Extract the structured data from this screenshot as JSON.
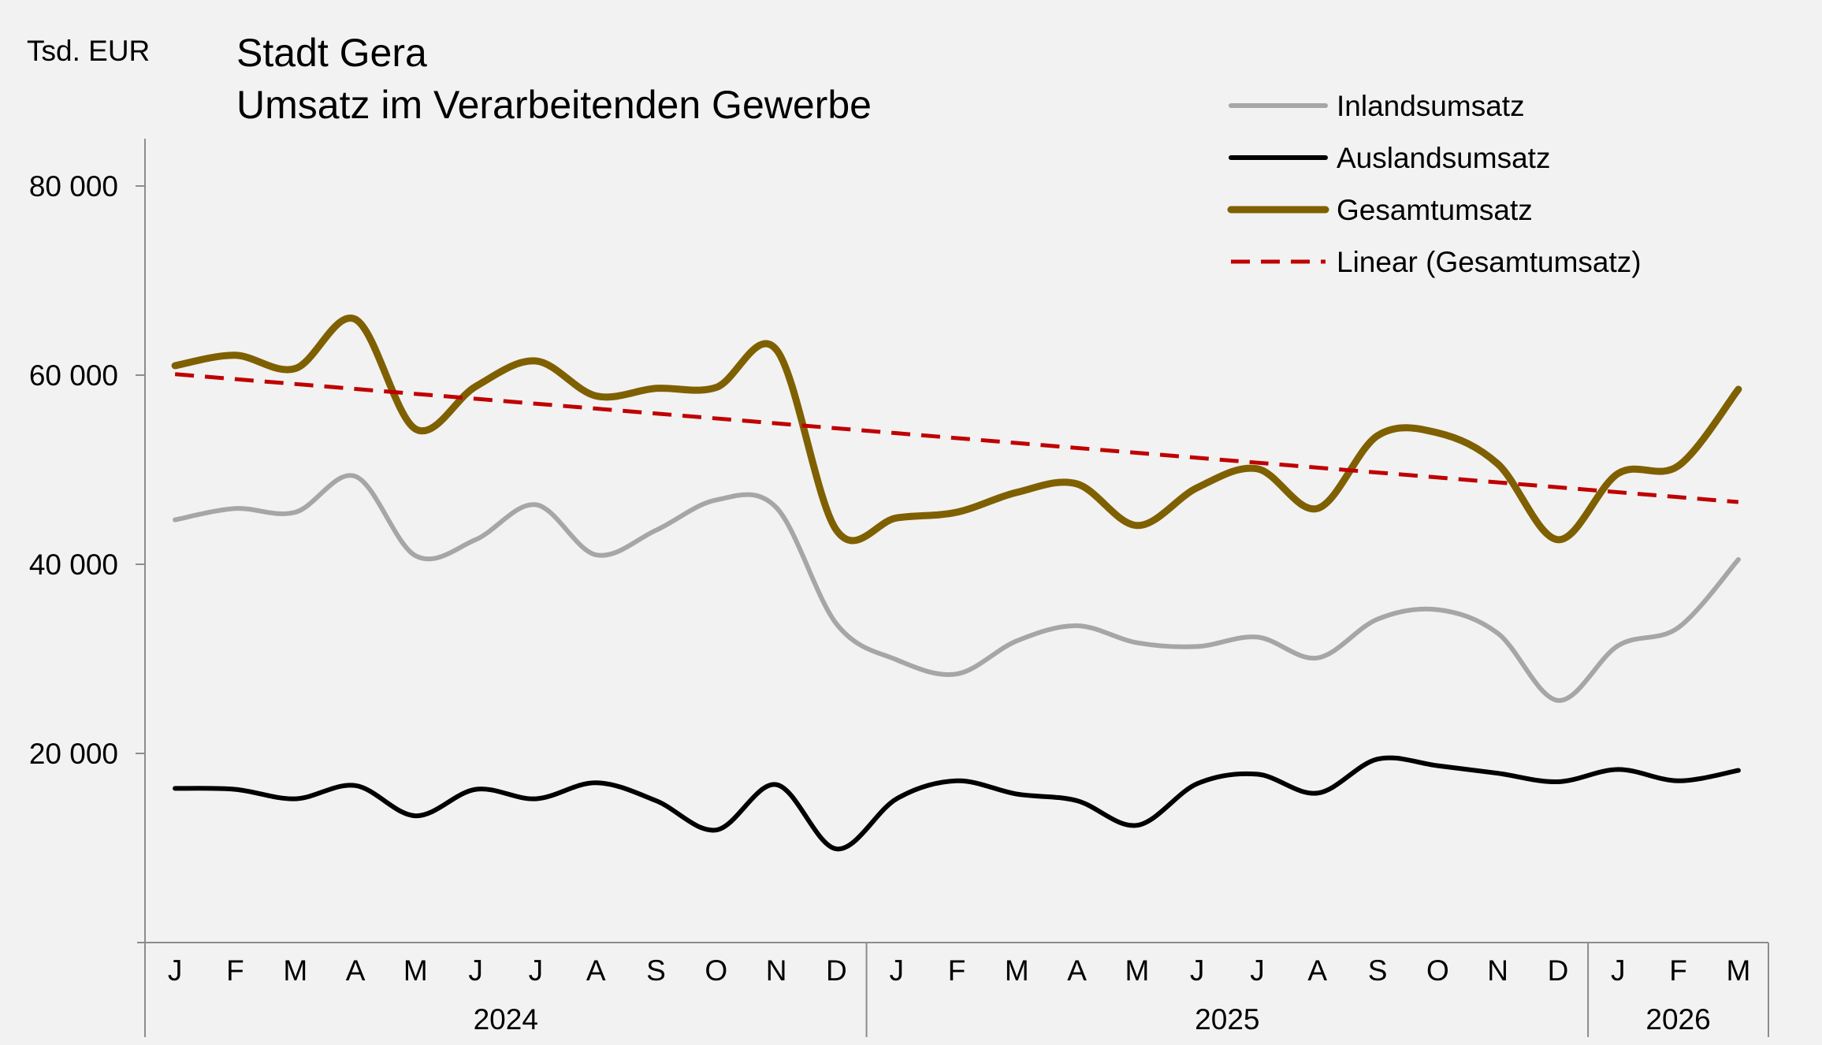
{
  "chart_data": {
    "type": "line",
    "unit_label": "Tsd. EUR",
    "title": "Stadt Gera",
    "subtitle": "Umsatz im Verarbeitenden Gewerbe",
    "x": [
      "J",
      "F",
      "M",
      "A",
      "M",
      "J",
      "J",
      "A",
      "S",
      "O",
      "N",
      "D",
      "J",
      "F",
      "M",
      "A",
      "M",
      "J",
      "J",
      "A",
      "S",
      "O",
      "N",
      "D",
      "J",
      "F",
      "M"
    ],
    "year_groups": [
      {
        "label": "2024",
        "start": 0,
        "end": 11
      },
      {
        "label": "2025",
        "start": 12,
        "end": 23
      },
      {
        "label": "2026",
        "start": 24,
        "end": 26
      }
    ],
    "ylim": [
      0,
      85000
    ],
    "yticks": [
      20000,
      40000,
      60000,
      80000
    ],
    "ytick_labels": [
      "20 000",
      "40 000",
      "60 000",
      "80 000"
    ],
    "legend_position": "top-right",
    "series": [
      {
        "name": "Inlandsumsatz",
        "color": "#a6a6a6",
        "style": "solid",
        "values": [
          44700,
          45900,
          45500,
          49300,
          40900,
          42600,
          46300,
          41000,
          43600,
          46800,
          46000,
          33700,
          29900,
          28400,
          31900,
          33500,
          31700,
          31300,
          32300,
          30100,
          34200,
          35200,
          32700,
          25600,
          31400,
          33300,
          40500
        ]
      },
      {
        "name": "Auslandsumsatz",
        "color": "#000000",
        "style": "solid",
        "values": [
          16300,
          16200,
          15200,
          16600,
          13400,
          16200,
          15200,
          16900,
          15000,
          11900,
          16700,
          9900,
          15200,
          17100,
          15700,
          15000,
          12400,
          16800,
          17800,
          15800,
          19400,
          18700,
          17900,
          17000,
          18300,
          17100,
          18200
        ]
      },
      {
        "name": "Gesamtumsatz",
        "color": "#7f6000",
        "style": "solid",
        "values": [
          61000,
          62100,
          60700,
          65900,
          54300,
          58800,
          61500,
          57800,
          58600,
          58700,
          62700,
          43600,
          44900,
          45500,
          47600,
          48500,
          44100,
          48100,
          50100,
          45900,
          53600,
          53900,
          50600,
          42600,
          49600,
          50400,
          58500
        ]
      },
      {
        "name": "Linear (Gesamtumsatz)",
        "color": "#c00000",
        "style": "dashed",
        "values": [
          60100,
          59580,
          59060,
          58540,
          58020,
          57500,
          56980,
          56460,
          55940,
          55420,
          54900,
          54380,
          53860,
          53340,
          52820,
          52300,
          51780,
          51260,
          50740,
          50220,
          49700,
          49180,
          48660,
          48140,
          47620,
          47100,
          46580
        ]
      }
    ]
  }
}
